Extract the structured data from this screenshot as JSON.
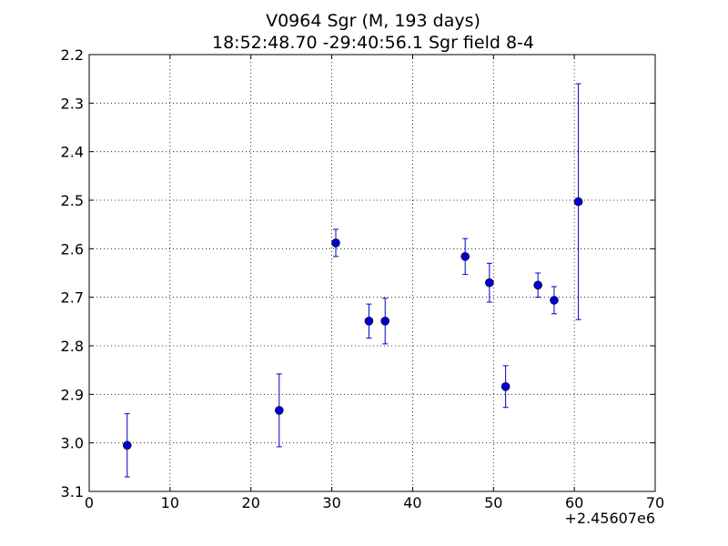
{
  "chart_data": {
    "type": "scatter",
    "title_line1": "V0964 Sgr  (M, 193 days)",
    "title_line2": "18:52:48.70 -29:40:56.1 Sgr field 8-4",
    "xlabel": "",
    "ylabel": "",
    "x_offset_label": "+2.45607e6",
    "xlim": [
      0,
      70
    ],
    "ylim": [
      2.2,
      3.1
    ],
    "y_inverted": true,
    "grid": true,
    "x_ticks": [
      0,
      10,
      20,
      30,
      40,
      50,
      60,
      70
    ],
    "x_tick_labels": [
      "0",
      "10",
      "20",
      "30",
      "40",
      "50",
      "60",
      "70"
    ],
    "y_ticks": [
      2.2,
      2.3,
      2.4,
      2.5,
      2.6,
      2.7,
      2.8,
      2.9,
      3.0,
      3.1
    ],
    "y_tick_labels": [
      "2.2",
      "2.3",
      "2.4",
      "2.5",
      "2.6",
      "2.7",
      "2.8",
      "2.9",
      "3.0",
      "3.1"
    ],
    "marker_color": "#0000cc",
    "errorbar_color": "#0000cc",
    "series": [
      {
        "points": [
          {
            "x": 4.7,
            "y": 3.005,
            "err": 0.065
          },
          {
            "x": 23.5,
            "y": 2.933,
            "err": 0.075
          },
          {
            "x": 30.5,
            "y": 2.588,
            "err": 0.028
          },
          {
            "x": 34.6,
            "y": 2.749,
            "err": 0.035
          },
          {
            "x": 36.6,
            "y": 2.749,
            "err": 0.047
          },
          {
            "x": 46.5,
            "y": 2.616,
            "err": 0.037
          },
          {
            "x": 49.5,
            "y": 2.67,
            "err": 0.04
          },
          {
            "x": 51.5,
            "y": 2.884,
            "err": 0.043
          },
          {
            "x": 55.5,
            "y": 2.675,
            "err": 0.025
          },
          {
            "x": 57.5,
            "y": 2.706,
            "err": 0.028
          },
          {
            "x": 60.5,
            "y": 2.503,
            "err": 0.243
          }
        ]
      }
    ]
  }
}
